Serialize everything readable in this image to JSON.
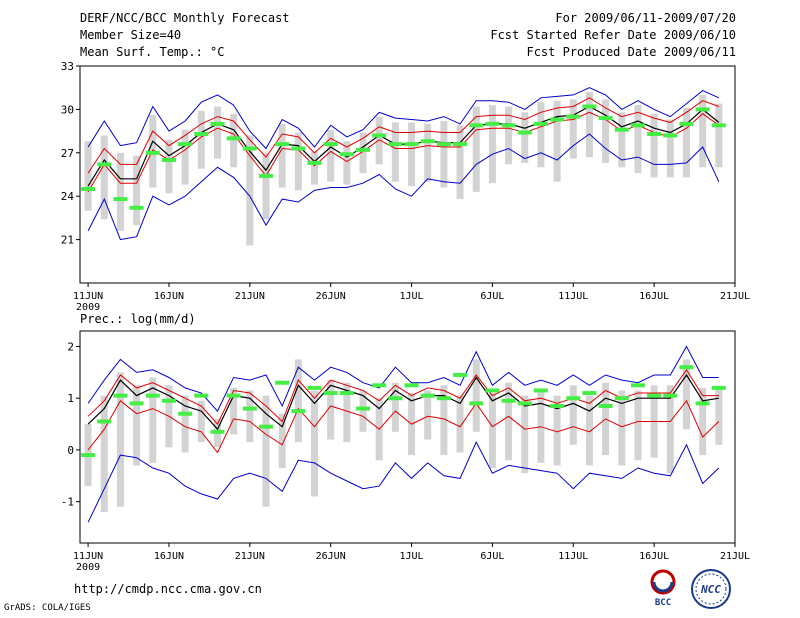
{
  "header": {
    "title": "DERF/NCC/BCC Monthly Forecast",
    "member_size": "Member Size=40",
    "variable_temp": "Mean Surf. Temp.: °C",
    "period": "For 2009/06/11-2009/07/20",
    "fcst_started": "Fcst Started Refer Date 2009/06/10",
    "fcst_produced": "Fcst Produced Date 2009/06/11"
  },
  "footer": {
    "url": "http://cmdp.ncc.cma.gov.cn",
    "grads_credit": "GrADS: COLA/IGES",
    "logo_bcc_text": "BCC",
    "logo_ncc_text": "NCC"
  },
  "colors": {
    "ensemble_bar": "#d3d3d3",
    "mean_line": "#000000",
    "envelope_red": "#e00000",
    "envelope_blue": "#0000cc",
    "deterministic_marker": "#44ee44"
  },
  "chart_data": [
    {
      "type": "line",
      "title": "Mean Surf. Temp.: °C",
      "x_tick_labels": [
        "11JUN",
        "16JUN",
        "21JUN",
        "26JUN",
        "1JUL",
        "6JUL",
        "11JUL",
        "16JUL",
        "21JUL"
      ],
      "x_tick_days": [
        1,
        6,
        11,
        16,
        21,
        26,
        31,
        36,
        41
      ],
      "year_label": "2009",
      "x_range": [
        0.5,
        41
      ],
      "y_ticks": [
        21,
        24,
        27,
        30,
        33
      ],
      "ylim": [
        18,
        33
      ],
      "days": [
        1,
        2,
        3,
        4,
        5,
        6,
        7,
        8,
        9,
        10,
        11,
        12,
        13,
        14,
        15,
        16,
        17,
        18,
        19,
        20,
        21,
        22,
        23,
        24,
        25,
        26,
        27,
        28,
        29,
        30,
        31,
        32,
        33,
        34,
        35,
        36,
        37,
        38,
        39,
        40
      ],
      "series": [
        {
          "name": "ensemble_mean",
          "values": [
            24.7,
            26.5,
            25.2,
            25.2,
            27.8,
            26.8,
            27.5,
            28.4,
            29.0,
            28.6,
            27.1,
            25.8,
            27.6,
            27.5,
            26.4,
            27.4,
            26.7,
            27.4,
            28.2,
            27.6,
            27.6,
            27.8,
            27.7,
            27.7,
            28.9,
            29.0,
            29.0,
            28.7,
            29.1,
            29.5,
            29.6,
            30.2,
            29.6,
            28.8,
            29.2,
            28.7,
            28.4,
            29.0,
            30.0,
            29.1
          ]
        },
        {
          "name": "red_upper",
          "values": [
            25.6,
            27.3,
            26.2,
            26.2,
            28.5,
            27.5,
            28.2,
            29.0,
            29.5,
            29.2,
            27.9,
            26.7,
            28.3,
            28.1,
            27.0,
            28.0,
            27.4,
            28.0,
            28.8,
            28.4,
            28.4,
            28.5,
            28.4,
            28.4,
            29.5,
            29.6,
            29.6,
            29.3,
            29.8,
            30.1,
            30.2,
            30.8,
            30.1,
            29.5,
            29.8,
            29.4,
            29.1,
            29.8,
            30.6,
            30.2
          ]
        },
        {
          "name": "red_lower",
          "values": [
            24.3,
            26.2,
            24.9,
            24.9,
            27.2,
            26.5,
            27.2,
            28.1,
            28.7,
            28.3,
            26.8,
            25.4,
            27.3,
            27.2,
            26.1,
            27.1,
            26.4,
            27.1,
            27.9,
            27.3,
            27.3,
            27.5,
            27.4,
            27.4,
            28.6,
            28.7,
            28.7,
            28.4,
            28.8,
            29.2,
            29.3,
            29.8,
            29.3,
            28.5,
            28.9,
            28.4,
            28.1,
            28.7,
            29.7,
            28.9
          ]
        },
        {
          "name": "blue_upper",
          "values": [
            27.4,
            29.2,
            27.5,
            27.7,
            30.2,
            28.5,
            29.2,
            30.5,
            31.0,
            30.3,
            28.5,
            27.3,
            29.3,
            28.7,
            27.4,
            28.9,
            28.1,
            28.6,
            29.8,
            29.4,
            29.3,
            29.2,
            29.5,
            29.0,
            30.6,
            30.6,
            30.5,
            30.0,
            30.8,
            30.9,
            31.0,
            31.5,
            31.0,
            30.0,
            30.6,
            30.0,
            29.5,
            30.4,
            31.3,
            30.8
          ]
        },
        {
          "name": "blue_lower",
          "values": [
            21.6,
            23.8,
            21.0,
            21.2,
            24.0,
            23.4,
            24.0,
            25.0,
            26.0,
            25.3,
            24.0,
            22.0,
            23.8,
            23.6,
            24.4,
            24.6,
            24.6,
            24.9,
            25.5,
            24.5,
            24.0,
            25.2,
            25.0,
            24.9,
            26.2,
            26.9,
            27.3,
            26.6,
            27.0,
            26.5,
            27.5,
            28.3,
            27.3,
            26.5,
            26.7,
            26.2,
            26.2,
            26.3,
            27.4,
            25.0
          ]
        },
        {
          "name": "member_max",
          "values": [
            27.8,
            28.2,
            27.0,
            26.8,
            29.6,
            27.9,
            28.6,
            29.9,
            30.2,
            29.7,
            28.2,
            27.0,
            29.0,
            28.4,
            27.1,
            28.6,
            27.8,
            28.4,
            29.5,
            29.1,
            29.1,
            29.0,
            29.2,
            28.9,
            30.2,
            30.3,
            30.2,
            29.8,
            30.5,
            30.6,
            30.7,
            31.2,
            30.7,
            29.8,
            30.3,
            29.7,
            29.3,
            30.1,
            31.0,
            30.4
          ]
        },
        {
          "name": "member_min",
          "values": [
            23.0,
            22.4,
            21.6,
            22.0,
            24.6,
            24.2,
            24.8,
            25.9,
            26.6,
            26.0,
            20.6,
            22.4,
            24.6,
            24.4,
            24.8,
            25.0,
            24.8,
            25.6,
            26.2,
            25.0,
            24.7,
            25.0,
            24.6,
            23.8,
            24.3,
            24.9,
            26.2,
            26.3,
            26.0,
            25.0,
            26.6,
            26.7,
            26.3,
            26.0,
            25.6,
            25.3,
            25.3,
            25.3,
            26.0,
            26.0
          ]
        },
        {
          "name": "deterministic",
          "values": [
            24.5,
            26.2,
            23.8,
            23.2,
            27.0,
            26.5,
            27.6,
            28.3,
            29.0,
            28.0,
            27.3,
            25.4,
            27.6,
            27.3,
            26.3,
            27.6,
            26.9,
            27.2,
            28.2,
            27.6,
            27.6,
            27.8,
            27.6,
            27.6,
            28.9,
            29.0,
            28.9,
            28.4,
            29.0,
            29.3,
            29.5,
            30.2,
            29.4,
            28.6,
            28.9,
            28.3,
            28.2,
            29.0,
            30.0,
            28.9
          ]
        }
      ]
    },
    {
      "type": "line",
      "title": "Prec.: log(mm/d)",
      "x_tick_labels": [
        "11JUN",
        "16JUN",
        "21JUN",
        "26JUN",
        "1JUL",
        "6JUL",
        "11JUL",
        "16JUL",
        "21JUL"
      ],
      "x_tick_days": [
        1,
        6,
        11,
        16,
        21,
        26,
        31,
        36,
        41
      ],
      "year_label": "2009",
      "x_range": [
        0.5,
        41
      ],
      "y_ticks": [
        -1,
        0,
        1,
        2
      ],
      "ylim": [
        -1.8,
        2.3
      ],
      "days": [
        1,
        2,
        3,
        4,
        5,
        6,
        7,
        8,
        9,
        10,
        11,
        12,
        13,
        14,
        15,
        16,
        17,
        18,
        19,
        20,
        21,
        22,
        23,
        24,
        25,
        26,
        27,
        28,
        29,
        30,
        31,
        32,
        33,
        34,
        35,
        36,
        37,
        38,
        39,
        40
      ],
      "series": [
        {
          "name": "ensemble_mean",
          "values": [
            0.5,
            0.8,
            1.35,
            1.05,
            1.2,
            1.05,
            0.85,
            0.75,
            0.4,
            1.05,
            1.0,
            0.7,
            0.45,
            1.25,
            0.9,
            1.25,
            1.15,
            1.05,
            0.8,
            1.15,
            0.95,
            1.05,
            1.05,
            0.9,
            1.4,
            0.95,
            1.1,
            0.85,
            0.9,
            0.8,
            0.9,
            0.75,
            1.0,
            0.9,
            1.0,
            1.0,
            1.0,
            1.45,
            0.95,
            1.0
          ]
        },
        {
          "name": "red_upper",
          "values": [
            0.65,
            0.95,
            1.45,
            1.2,
            1.3,
            1.15,
            1.0,
            0.85,
            0.5,
            1.15,
            1.1,
            0.85,
            0.55,
            1.35,
            1.0,
            1.35,
            1.25,
            1.15,
            0.95,
            1.25,
            1.05,
            1.2,
            1.15,
            1.0,
            1.45,
            1.05,
            1.2,
            0.95,
            1.0,
            0.9,
            1.0,
            0.9,
            1.15,
            1.0,
            1.1,
            1.1,
            1.1,
            1.55,
            1.05,
            1.05
          ]
        },
        {
          "name": "red_lower",
          "values": [
            0.0,
            0.4,
            0.95,
            0.7,
            0.8,
            0.65,
            0.45,
            0.35,
            -0.05,
            0.6,
            0.55,
            0.3,
            0.1,
            0.8,
            0.45,
            0.85,
            0.75,
            0.65,
            0.4,
            0.75,
            0.5,
            0.65,
            0.6,
            0.45,
            0.9,
            0.45,
            0.65,
            0.4,
            0.45,
            0.35,
            0.45,
            0.35,
            0.6,
            0.45,
            0.55,
            0.55,
            0.55,
            0.95,
            0.25,
            0.55
          ]
        },
        {
          "name": "blue_upper",
          "values": [
            0.9,
            1.35,
            1.75,
            1.5,
            1.55,
            1.4,
            1.2,
            1.1,
            0.75,
            1.4,
            1.35,
            1.45,
            0.85,
            1.6,
            1.35,
            1.6,
            1.5,
            1.3,
            1.2,
            1.6,
            1.3,
            1.3,
            1.4,
            1.25,
            1.9,
            1.25,
            1.5,
            1.25,
            1.35,
            1.25,
            1.45,
            1.25,
            1.45,
            1.35,
            1.3,
            1.45,
            1.45,
            2.0,
            1.4,
            1.4
          ]
        },
        {
          "name": "blue_lower",
          "values": [
            -1.4,
            -0.75,
            -0.1,
            -0.15,
            -0.35,
            -0.45,
            -0.7,
            -0.85,
            -0.95,
            -0.55,
            -0.45,
            -0.55,
            -0.8,
            -0.2,
            -0.25,
            -0.45,
            -0.6,
            -0.75,
            -0.7,
            -0.25,
            -0.55,
            -0.25,
            -0.5,
            -0.55,
            0.15,
            -0.45,
            -0.3,
            -0.35,
            -0.4,
            -0.45,
            -0.75,
            -0.45,
            -0.5,
            -0.55,
            -0.35,
            -0.45,
            -0.5,
            0.1,
            -0.65,
            -0.35
          ]
        },
        {
          "name": "member_max",
          "values": [
            0.5,
            1.05,
            1.5,
            1.25,
            1.4,
            1.25,
            1.05,
            0.95,
            0.6,
            1.2,
            1.15,
            1.05,
            0.7,
            1.75,
            1.15,
            1.35,
            1.3,
            1.15,
            1.0,
            1.3,
            1.1,
            1.15,
            1.25,
            1.05,
            1.75,
            1.1,
            1.3,
            1.05,
            1.15,
            1.05,
            1.25,
            1.05,
            1.3,
            1.15,
            1.15,
            1.25,
            1.25,
            1.75,
            1.2,
            1.2
          ]
        },
        {
          "name": "member_min",
          "values": [
            -0.7,
            -1.2,
            -1.1,
            -0.3,
            -0.25,
            0.05,
            -0.05,
            0.15,
            0.05,
            0.3,
            0.15,
            -1.1,
            -0.35,
            0.15,
            -0.9,
            0.2,
            0.15,
            0.35,
            -0.2,
            0.35,
            -0.1,
            0.2,
            -0.1,
            -0.05,
            0.35,
            -0.35,
            -0.2,
            -0.45,
            -0.25,
            -0.3,
            0.1,
            -0.3,
            -0.1,
            -0.3,
            -0.2,
            -0.15,
            -0.45,
            0.4,
            -0.1,
            0.1
          ]
        },
        {
          "name": "deterministic",
          "values": [
            -0.1,
            0.55,
            1.05,
            0.9,
            1.05,
            0.95,
            0.7,
            1.05,
            0.35,
            1.05,
            0.8,
            0.45,
            1.3,
            0.75,
            1.2,
            1.1,
            1.1,
            0.8,
            1.25,
            1.0,
            1.25,
            1.05,
            1.0,
            1.45,
            0.9,
            1.15,
            0.95,
            0.9,
            1.15,
            0.85,
            1.0,
            1.1,
            0.85,
            1.0,
            1.25,
            1.05,
            1.05,
            1.6,
            0.9,
            1.2
          ]
        }
      ]
    }
  ]
}
